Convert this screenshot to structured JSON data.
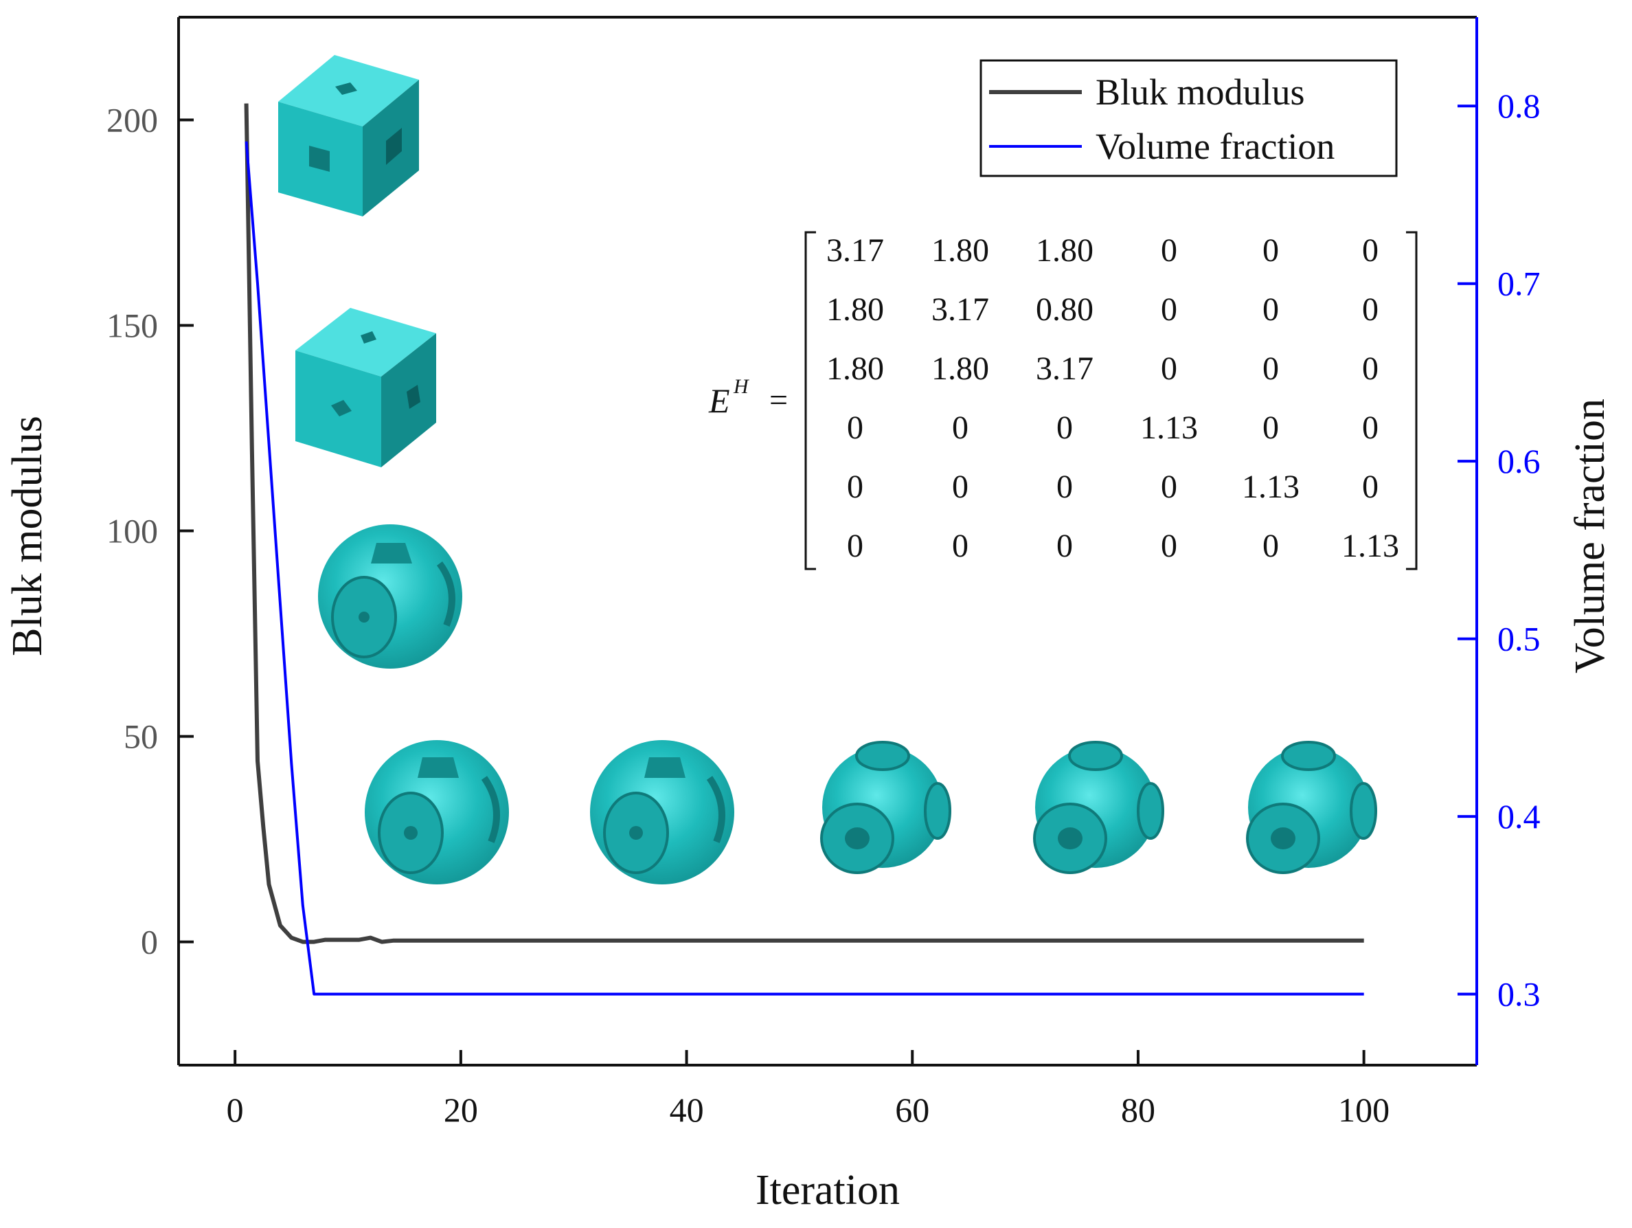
{
  "chart_data": {
    "type": "line",
    "xlabel": "Iteration",
    "ylabel": "Bluk modulus",
    "y2label": "Volume fraction",
    "xlim": [
      -5,
      110
    ],
    "ylim": [
      -30,
      225
    ],
    "y2lim": [
      0.26,
      0.85
    ],
    "xticks": [
      "0",
      "20",
      "40",
      "60",
      "80",
      "100"
    ],
    "yticks": [
      "0",
      "50",
      "100",
      "150",
      "200"
    ],
    "y2ticks": [
      "0.3",
      "0.4",
      "0.5",
      "0.6",
      "0.7",
      "0.8"
    ],
    "grid": false,
    "legend_position": "top-right",
    "series": [
      {
        "name": "Bluk modulus",
        "axis": "left",
        "color": "#3f3f3f",
        "x": [
          1,
          1.5,
          2,
          2.5,
          3,
          4,
          5,
          6,
          7,
          8,
          9,
          10,
          11,
          12,
          13,
          14,
          15,
          20,
          30,
          40,
          50,
          60,
          70,
          80,
          90,
          100
        ],
        "y": [
          204,
          120,
          44,
          28,
          14,
          4,
          1,
          0,
          0,
          0.5,
          0.5,
          0.5,
          0.5,
          1,
          0,
          0.3,
          0.3,
          0.3,
          0.3,
          0.3,
          0.3,
          0.3,
          0.3,
          0.3,
          0.3,
          0.3
        ]
      },
      {
        "name": "Volume fraction",
        "axis": "right",
        "color": "#0000ff",
        "x": [
          1,
          2,
          3,
          4,
          5,
          6,
          7,
          10,
          20,
          40,
          60,
          80,
          100
        ],
        "y": [
          0.78,
          0.7,
          0.61,
          0.52,
          0.43,
          0.35,
          0.3,
          0.3,
          0.3,
          0.3,
          0.3,
          0.3,
          0.3
        ]
      }
    ],
    "annotation": {
      "label_main": "E",
      "label_sup": "H",
      "equals": "=",
      "matrix": [
        [
          "3.17",
          "1.80",
          "1.80",
          "0",
          "0",
          "0"
        ],
        [
          "1.80",
          "3.17",
          "0.80",
          "0",
          "0",
          "0"
        ],
        [
          "1.80",
          "1.80",
          "3.17",
          "0",
          "0",
          "0"
        ],
        [
          "0",
          "0",
          "0",
          "1.13",
          "0",
          "0"
        ],
        [
          "0",
          "0",
          "0",
          "0",
          "1.13",
          "0"
        ],
        [
          "0",
          "0",
          "0",
          "0",
          "0",
          "1.13"
        ]
      ]
    },
    "colors": {
      "structure": "#1fbcbc",
      "structure_highlight": "#4fe0e0",
      "structure_shadow": "#128c8c"
    }
  }
}
